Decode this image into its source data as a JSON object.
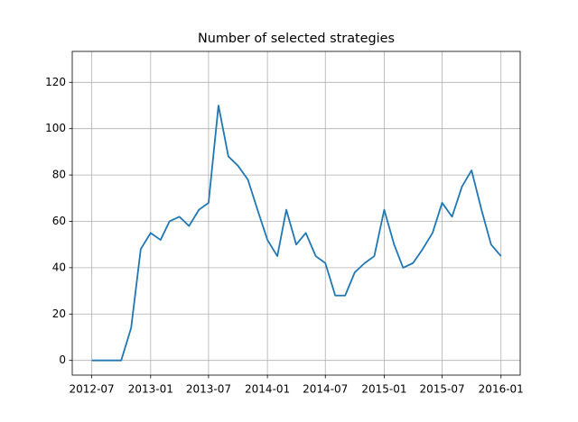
{
  "chart_data": {
    "type": "line",
    "title": "Number of selected strategies",
    "x": [
      "2012-07",
      "2012-08",
      "2012-09",
      "2012-10",
      "2012-11",
      "2012-12",
      "2013-01",
      "2013-02",
      "2013-03",
      "2013-04",
      "2013-05",
      "2013-06",
      "2013-07",
      "2013-08",
      "2013-09",
      "2013-10",
      "2013-11",
      "2013-12",
      "2014-01",
      "2014-02",
      "2014-03",
      "2014-04",
      "2014-05",
      "2014-06",
      "2014-07",
      "2014-08",
      "2014-09",
      "2014-10",
      "2014-11",
      "2014-12",
      "2015-01",
      "2015-02",
      "2015-03",
      "2015-04",
      "2015-05",
      "2015-06",
      "2015-07",
      "2015-08",
      "2015-09",
      "2015-10",
      "2015-11",
      "2015-12",
      "2016-01"
    ],
    "series": [
      {
        "name": "selected strategies",
        "color": "#1f77b4",
        "values": [
          0,
          0,
          0,
          0,
          14,
          48,
          55,
          52,
          60,
          62,
          58,
          65,
          68,
          110,
          88,
          84,
          78,
          65,
          52,
          45,
          65,
          50,
          55,
          45,
          42,
          28,
          28,
          38,
          42,
          45,
          65,
          50,
          40,
          42,
          48,
          55,
          68,
          62,
          75,
          82,
          65,
          50,
          45
        ]
      }
    ],
    "xlim": [
      "2012-05",
      "2016-03"
    ],
    "xticks": [
      "2012-07",
      "2013-01",
      "2013-07",
      "2014-01",
      "2014-07",
      "2015-01",
      "2015-07",
      "2016-01"
    ],
    "ylim": [
      -6.35,
      133.35
    ],
    "yticks": [
      0,
      20,
      40,
      60,
      80,
      100,
      120
    ],
    "grid": true
  }
}
